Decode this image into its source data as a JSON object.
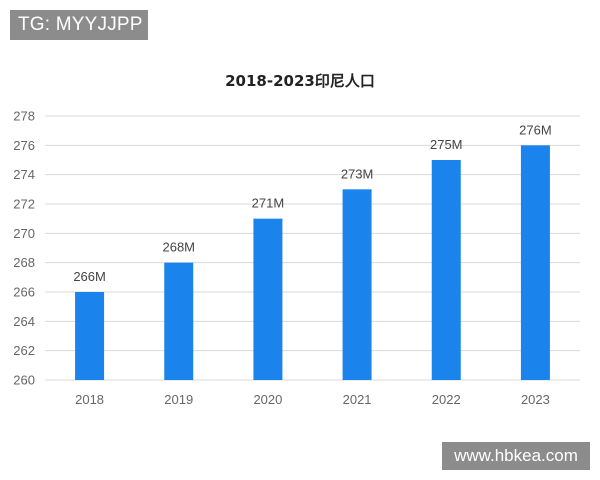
{
  "watermarks": {
    "top": "TG: MYYJJPP",
    "bottom": "www.hbkea.com"
  },
  "colors": {
    "bar": "#1b84ec",
    "grid": "#d9d9d9",
    "watermark_bg": "#8c8c8c"
  },
  "chart_data": {
    "type": "bar",
    "title": "2018-2023印尼人口",
    "xlabel": "",
    "ylabel": "",
    "categories": [
      "2018",
      "2019",
      "2020",
      "2021",
      "2022",
      "2023"
    ],
    "values": [
      266,
      268,
      271,
      273,
      275,
      276
    ],
    "data_labels": [
      "266M",
      "268M",
      "271M",
      "273M",
      "275M",
      "276M"
    ],
    "ylim": [
      260,
      278
    ],
    "yticks": [
      260,
      262,
      264,
      266,
      268,
      270,
      272,
      274,
      276,
      278
    ],
    "grid": true,
    "legend": "none"
  }
}
